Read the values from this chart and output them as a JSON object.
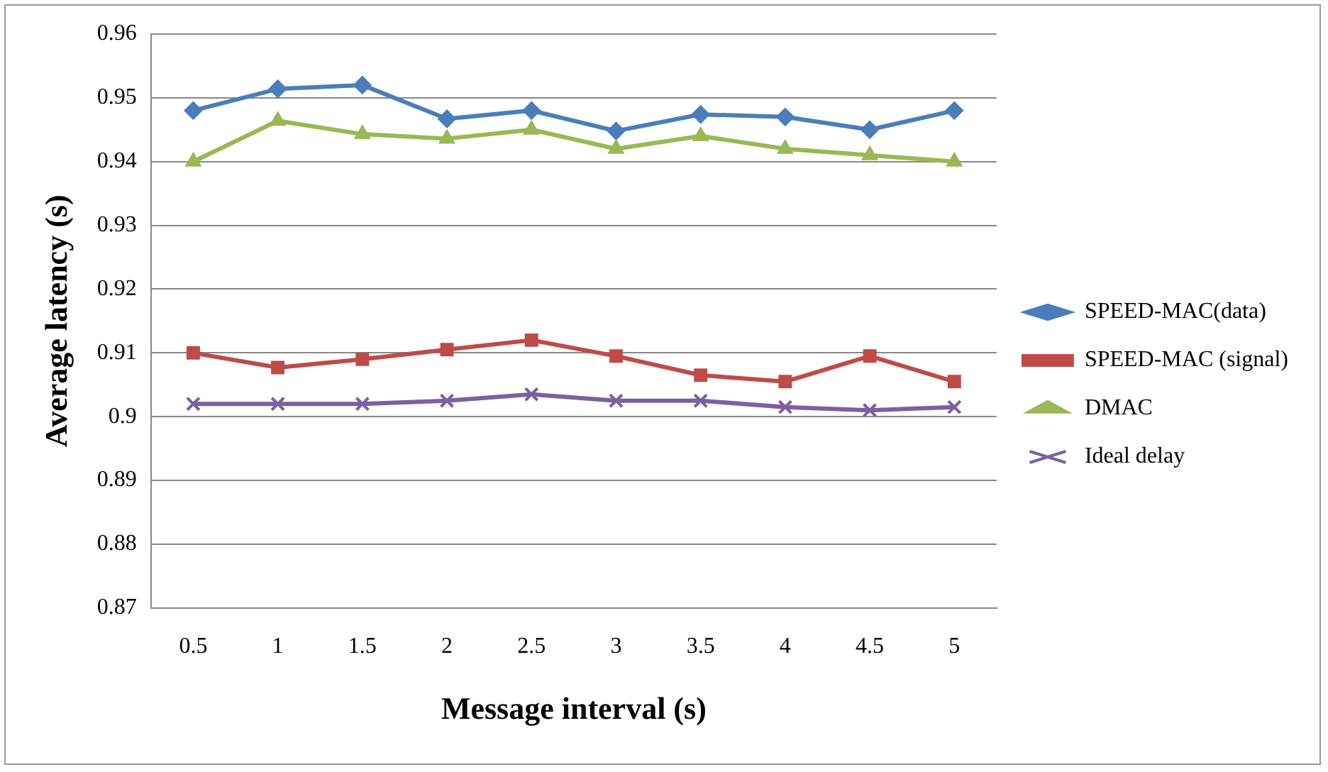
{
  "chart_data": {
    "type": "line",
    "xlabel": "Message interval (s)",
    "ylabel": "Average latency (s)",
    "categories": [
      "0.5",
      "1",
      "1.5",
      "2",
      "2.5",
      "3",
      "3.5",
      "4",
      "4.5",
      "5"
    ],
    "series": [
      {
        "name": "SPEED-MAC(data)",
        "color": "#4a7ebb",
        "marker": "diamond",
        "values": [
          0.948,
          0.9514,
          0.952,
          0.9467,
          0.948,
          0.9448,
          0.9474,
          0.947,
          0.945,
          0.948
        ]
      },
      {
        "name": "SPEED-MAC (signal)",
        "color": "#be4b48",
        "marker": "square",
        "values": [
          0.91,
          0.9077,
          0.909,
          0.9105,
          0.912,
          0.9095,
          0.9065,
          0.9055,
          0.9095,
          0.9055
        ]
      },
      {
        "name": "DMAC",
        "color": "#98b954",
        "marker": "triangle",
        "values": [
          0.94,
          0.9464,
          0.9443,
          0.9436,
          0.945,
          0.942,
          0.944,
          0.942,
          0.941,
          0.94
        ]
      },
      {
        "name": "Ideal delay",
        "color": "#7d60a0",
        "marker": "cross",
        "values": [
          0.902,
          0.902,
          0.902,
          0.9025,
          0.9035,
          0.9025,
          0.9025,
          0.9015,
          0.901,
          0.9015
        ]
      }
    ],
    "ylim": [
      0.87,
      0.96
    ],
    "yticks": [
      0.87,
      0.88,
      0.89,
      0.9,
      0.91,
      0.92,
      0.93,
      0.94,
      0.95,
      0.96
    ],
    "grid": "y",
    "legend": "right",
    "line_style": "solid"
  }
}
